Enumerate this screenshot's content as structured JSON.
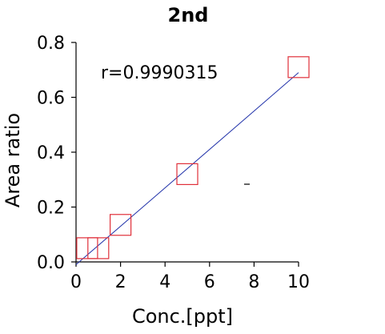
{
  "chart_data": {
    "type": "scatter",
    "title": "2nd",
    "xlabel": "Conc.[ppt]",
    "ylabel": "Area ratio",
    "xlim": [
      0,
      10
    ],
    "ylim": [
      0,
      0.8
    ],
    "xticks": [
      0,
      2,
      4,
      6,
      8,
      10
    ],
    "yticks": [
      "0.0",
      "0.2",
      "0.4",
      "0.6",
      "0.8"
    ],
    "annotation": "r=0.9990315",
    "marker": "square",
    "marker_color": "#e0303a",
    "line_color": "#2233aa",
    "points": [
      {
        "x": 0.5,
        "y": 0.05
      },
      {
        "x": 1.0,
        "y": 0.05
      },
      {
        "x": 2.0,
        "y": 0.135
      },
      {
        "x": 5.0,
        "y": 0.32
      },
      {
        "x": 10.0,
        "y": 0.71
      }
    ],
    "fit": {
      "x": [
        0,
        10
      ],
      "y": [
        -0.01,
        0.69
      ]
    }
  }
}
